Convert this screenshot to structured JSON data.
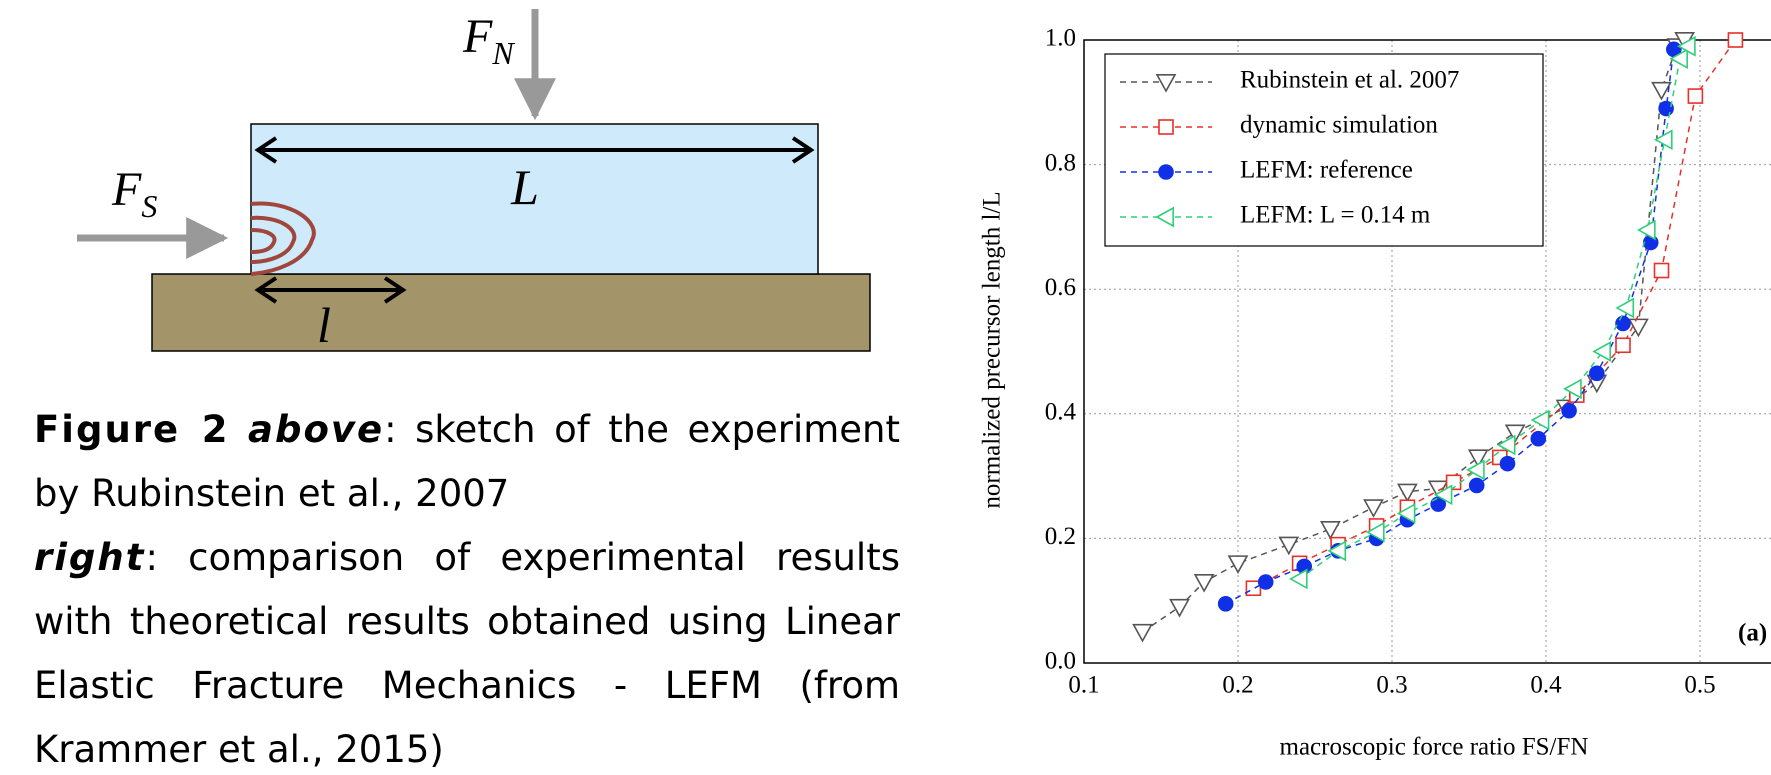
{
  "diagram": {
    "normal_force": {
      "symbol": "F",
      "subscript": "N"
    },
    "shear_force": {
      "symbol": "F",
      "subscript": "S"
    },
    "block_length": "L",
    "precursor_length": "l"
  },
  "caption": {
    "label": "Figure 2",
    "first_key": "above",
    "first_text": ": sketch of the experiment by Rubinstein et al., 2007",
    "second_key": "right",
    "second_text": ": comparison of experimental results with theoretical results obtained using Linear Elastic Fracture Mechanics - LEFM (from Krammer et al., 2015)"
  },
  "chart_data": {
    "type": "line",
    "xlabel": "macroscopic force ratio FS/FN",
    "ylabel": "normalized precursor length l/L",
    "annotation": "(a)",
    "xlim": [
      0.1,
      0.545
    ],
    "ylim": [
      0,
      1
    ],
    "xticks": [
      0.1,
      0.2,
      0.3,
      0.4,
      0.5
    ],
    "yticks": [
      {
        "value": 0,
        "label": "0.0"
      },
      0.2,
      0.4,
      0.6,
      0.8,
      {
        "value": 1,
        "label": "1.0"
      }
    ],
    "grid": true,
    "legend": "upper left",
    "series": [
      {
        "name": "Rubinstein et al. 2007",
        "color": "#555555",
        "marker": "triangle-down",
        "x": [
          0.138,
          0.162,
          0.178,
          0.2,
          0.233,
          0.26,
          0.288,
          0.31,
          0.33,
          0.356,
          0.38,
          0.413,
          0.433,
          0.46,
          0.475,
          0.485,
          0.49
        ],
        "values": [
          0.05,
          0.09,
          0.13,
          0.16,
          0.19,
          0.215,
          0.25,
          0.275,
          0.28,
          0.33,
          0.37,
          0.41,
          0.45,
          0.54,
          0.92,
          0.99,
          1.0
        ]
      },
      {
        "name": "dynamic simulation",
        "color": "#e8302a",
        "marker": "square",
        "x": [
          0.21,
          0.24,
          0.265,
          0.29,
          0.31,
          0.34,
          0.37,
          0.42,
          0.45,
          0.475,
          0.497,
          0.523
        ],
        "values": [
          0.12,
          0.16,
          0.19,
          0.22,
          0.25,
          0.29,
          0.33,
          0.43,
          0.51,
          0.63,
          0.91,
          1.0
        ]
      },
      {
        "name": "LEFM: reference",
        "color": "#1030e8",
        "marker": "circle",
        "x": [
          0.192,
          0.218,
          0.243,
          0.265,
          0.29,
          0.31,
          0.33,
          0.355,
          0.375,
          0.395,
          0.415,
          0.433,
          0.45,
          0.468,
          0.478,
          0.483
        ],
        "values": [
          0.095,
          0.13,
          0.155,
          0.18,
          0.2,
          0.23,
          0.255,
          0.285,
          0.32,
          0.36,
          0.405,
          0.465,
          0.545,
          0.675,
          0.89,
          0.985
        ]
      },
      {
        "name": "LEFM: L = 0.14 m",
        "color": "#2ecf7a",
        "marker": "triangle-left",
        "x": [
          0.24,
          0.265,
          0.29,
          0.31,
          0.334,
          0.355,
          0.375,
          0.397,
          0.418,
          0.437,
          0.452,
          0.466,
          0.477,
          0.487,
          0.492
        ],
        "values": [
          0.135,
          0.18,
          0.21,
          0.24,
          0.27,
          0.31,
          0.35,
          0.39,
          0.44,
          0.5,
          0.57,
          0.695,
          0.84,
          0.97,
          0.99
        ]
      }
    ]
  }
}
